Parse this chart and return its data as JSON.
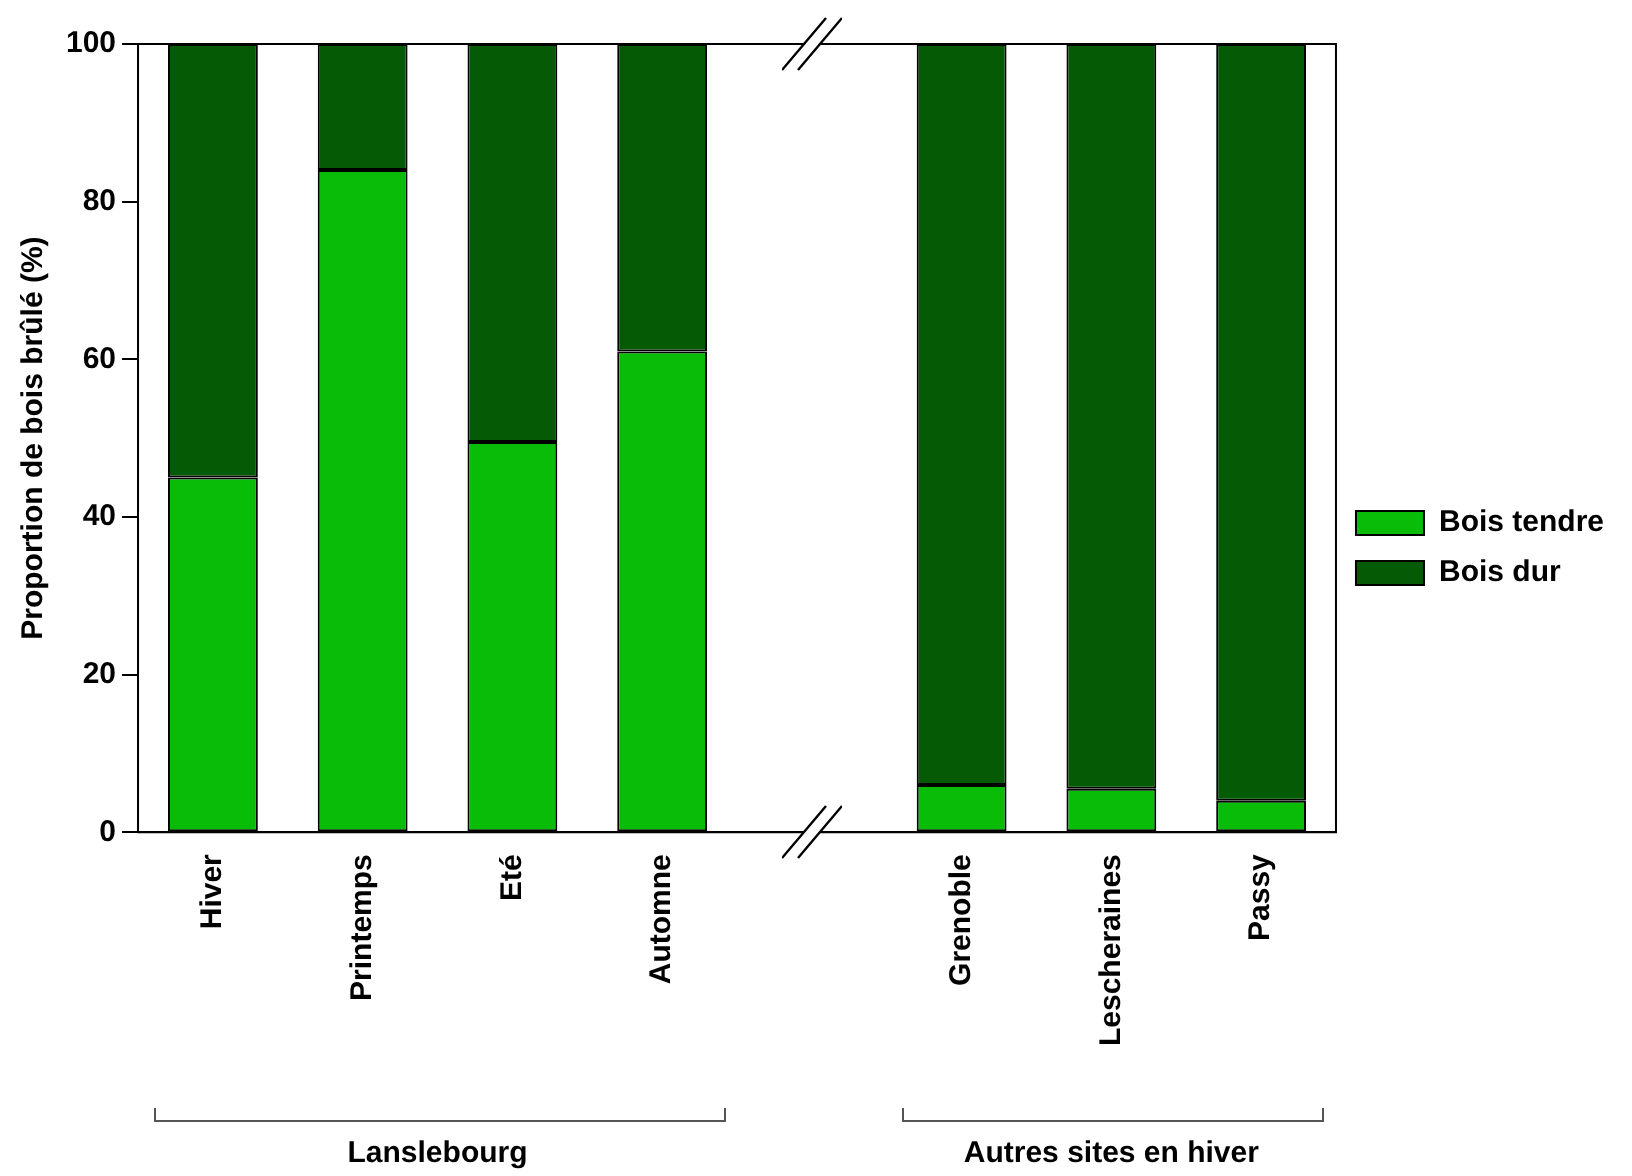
{
  "chart_data": {
    "type": "bar",
    "stacked": true,
    "ylabel": "Proportion de bois brûlé (%)",
    "categories": [
      "Hiver",
      "Printemps",
      "Eté",
      "Automne",
      null,
      "Grenoble",
      "Lescheraines",
      "Passy"
    ],
    "series": [
      {
        "name": "Bois tendre",
        "color": "#08bc08",
        "values": [
          45,
          84,
          49.5,
          61,
          null,
          6,
          5.5,
          4
        ]
      },
      {
        "name": "Bois dur",
        "color": "#055a05",
        "values": [
          55,
          16,
          50.5,
          39,
          null,
          94,
          94.5,
          96
        ]
      }
    ],
    "ylim": [
      0,
      100
    ],
    "yticks": [
      0,
      20,
      40,
      60,
      80,
      100
    ],
    "grid": false,
    "legend": "right",
    "annotations": [
      "Lanslebourg",
      "Autres sites en hiver"
    ]
  }
}
